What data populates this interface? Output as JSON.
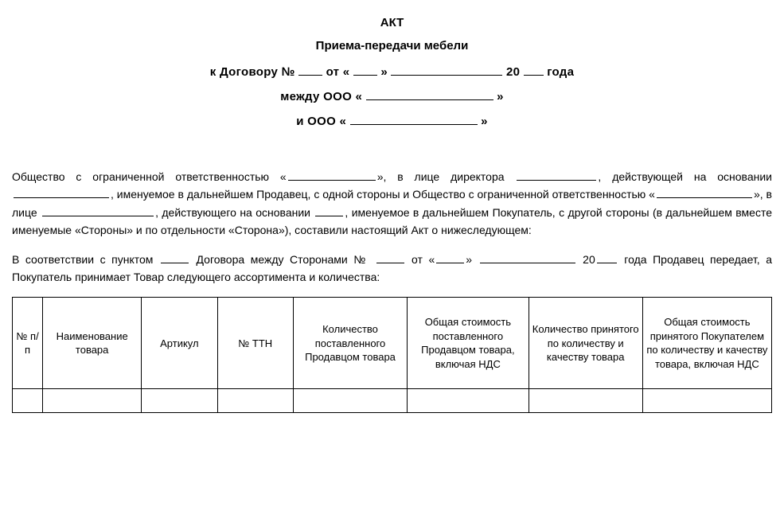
{
  "header": {
    "title_main": "АКТ",
    "title_sub": "Приема-передачи мебели",
    "line1_prefix": "к Договору  №",
    "line1_ot": "от  «",
    "line1_close_quote": "»",
    "line1_year_prefix": "20",
    "line1_year_suffix": "года",
    "line2_prefix": "между ООО  «",
    "line2_suffix": "»",
    "line3_prefix": "и ООО  «",
    "line3_suffix": "»"
  },
  "body": {
    "p1_a": "Общество с ограниченной ответственностью «",
    "p1_b": "», в лице директора ",
    "p1_c": ", действующей на основании ",
    "p1_d": ", именуемое в дальнейшем Продавец, с одной стороны и Общество с ограниченной ответственностью «",
    "p1_e": "», в лице ",
    "p1_f": ", действующего на основании ",
    "p1_g": ", именуемое в дальнейшем Покупатель, с другой стороны (в дальнейшем вместе именуемые «Стороны» и по отдельности «Сторона»), составили настоящий Акт о нижеследующем:",
    "p2_a": "В соответствии с пунктом ",
    "p2_b": " Договора между Сторонами № ",
    "p2_c": " от «",
    "p2_d": "» ",
    "p2_e": " 20",
    "p2_f": " года Продавец передает, а Покупатель принимает Товар следующего ассортимента и количества:"
  },
  "table": {
    "columns": [
      "№ п/п",
      "Наименование товара",
      "Артикул",
      "№ ТТН",
      "Количество поставленного Продавцом товара",
      "Общая стоимость поставленного Продавцом товара, включая НДС",
      "Количество принятого по количеству и качеству товара",
      "Общая стоимость принятого Покупателем по количеству и качеству товара, включая НДС"
    ],
    "rows": [
      [
        "",
        "",
        "",
        "",
        "",
        "",
        "",
        ""
      ]
    ]
  },
  "marker": "⊕"
}
